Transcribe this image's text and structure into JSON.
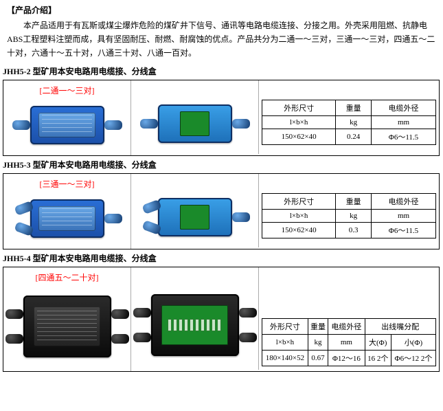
{
  "intro": {
    "heading": "【产品介绍】",
    "paragraph": "本产品适用于有瓦斯或煤尘爆炸危险的煤矿井下信号、通讯等电路电缆连接、分接之用。外壳采用阻燃、抗静电ABS工程塑料注塑而成，具有坚固耐压、耐燃、耐腐蚀的优点。产品共分为二通一～三对，三通一～三对，四通五～二十对，六通十～五十对，八通三十对、八通一百对。"
  },
  "models": [
    {
      "title": "JHH5-2 型矿用本安电路用电缆接、分线盒",
      "config_label": "[二通一～三对]",
      "box_style": "blue",
      "gland_layout": "two_way",
      "spec_simple": {
        "headers": {
          "dim": "外形尺寸",
          "dim_sub": "l×b×h",
          "weight": "重量",
          "weight_sub": "kg",
          "cable": "电缆外径",
          "cable_sub": "mm"
        },
        "values": {
          "dim": "150×62×40",
          "weight": "0.24",
          "cable": "Φ6～11.5"
        }
      }
    },
    {
      "title": "JHH5-3 型矿用本安电路用电缆接、分线盒",
      "config_label": "[三通一～三对]",
      "box_style": "blue",
      "gland_layout": "three_way",
      "spec_simple": {
        "headers": {
          "dim": "外形尺寸",
          "dim_sub": "l×b×h",
          "weight": "重量",
          "weight_sub": "kg",
          "cable": "电缆外径",
          "cable_sub": "mm"
        },
        "values": {
          "dim": "150×62×40",
          "weight": "0.3",
          "cable": "Φ6～11.5"
        }
      }
    },
    {
      "title": "JHH5-4 型矿用本安电路用电缆接、分线盒",
      "config_label": "[四通五～二十对]",
      "box_style": "black",
      "gland_layout": "four_way",
      "spec_complex": {
        "headers": {
          "dim": "外形尺寸",
          "dim_sub": "l×b×h",
          "weight": "重量",
          "weight_sub": "kg",
          "cable": "电缆外径",
          "cable_sub": "mm",
          "outlet": "出线嘴分配",
          "big": "大(Φ)",
          "small": "小(Φ)"
        },
        "values": {
          "dim": "180×140×52",
          "weight": "0.67",
          "cable": "Φ12～16",
          "big": "16  2个",
          "small": "Φ6～12  2个"
        }
      }
    }
  ]
}
